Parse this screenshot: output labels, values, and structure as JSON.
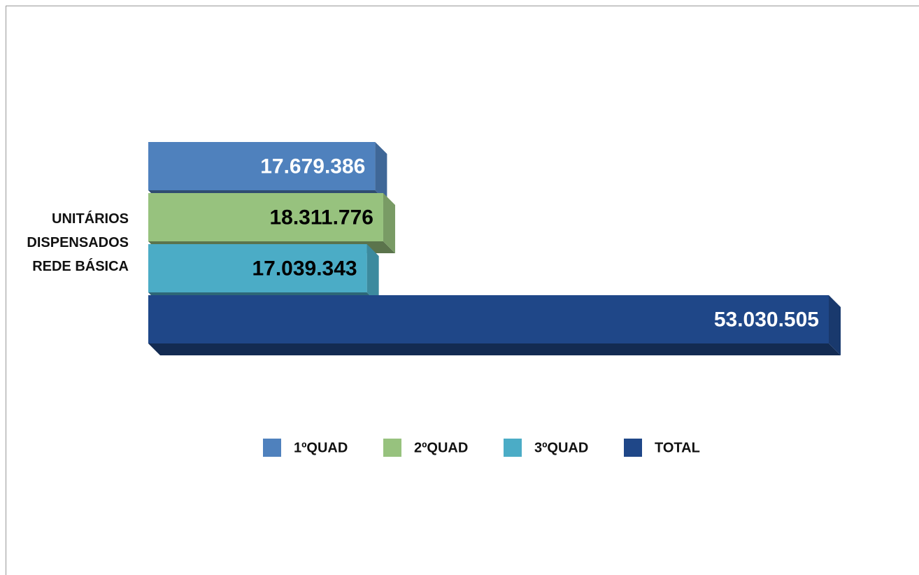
{
  "chart_data": {
    "type": "bar3d-horizontal",
    "categories": [
      "UNITÁRIOS DISPENSADOS REDE BÁSICA"
    ],
    "series": [
      {
        "name": "1ºQUAD",
        "color": "#4f81bd",
        "label_color": "#ffffff",
        "values": [
          17679386
        ],
        "value_labels": [
          "17.679.386"
        ]
      },
      {
        "name": "2ºQUAD",
        "color": "#97c27e",
        "label_color": "#000000",
        "values": [
          18311776
        ],
        "value_labels": [
          "18.311.776"
        ]
      },
      {
        "name": "3ºQUAD",
        "color": "#4bacc6",
        "label_color": "#000000",
        "values": [
          17039343
        ],
        "value_labels": [
          "17.039.343"
        ]
      },
      {
        "name": "TOTAL",
        "color": "#1f4788",
        "label_color": "#ffffff",
        "values": [
          53030505
        ],
        "value_labels": [
          "53.030.505"
        ]
      }
    ],
    "legend": "bottom"
  }
}
